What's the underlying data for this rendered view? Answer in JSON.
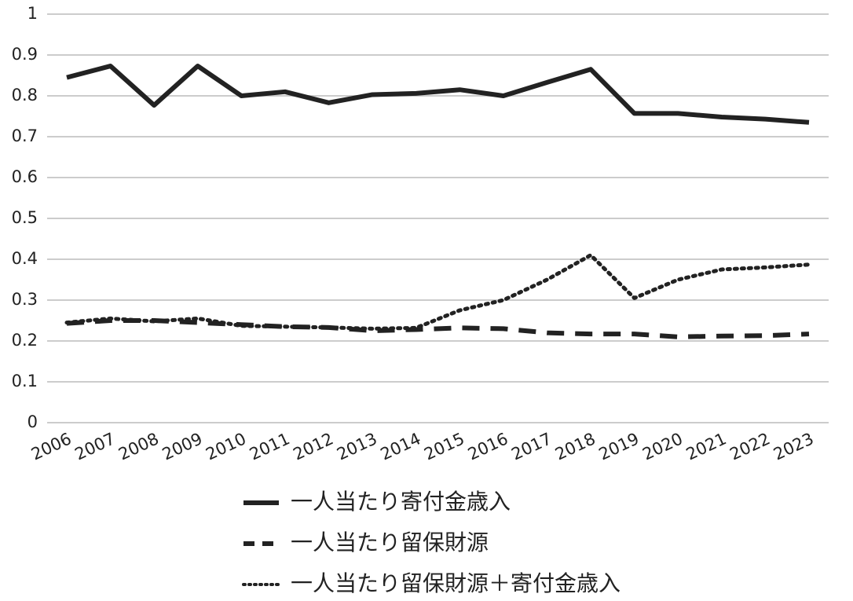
{
  "chart_data": {
    "type": "line",
    "categories": [
      "2006",
      "2007",
      "2008",
      "2009",
      "2010",
      "2011",
      "2012",
      "2013",
      "2014",
      "2015",
      "2016",
      "2017",
      "2018",
      "2019",
      "2020",
      "2021",
      "2022",
      "2023"
    ],
    "series": [
      {
        "name": "一人当たり寄付金歳入",
        "color": "#222222",
        "style": "solid",
        "values": [
          0.845,
          0.873,
          0.777,
          0.873,
          0.8,
          0.81,
          0.783,
          0.803,
          0.806,
          0.815,
          0.8,
          0.833,
          0.865,
          0.757,
          0.757,
          0.748,
          0.743,
          0.735
        ]
      },
      {
        "name": "一人当たり留保財源",
        "color": "#222222",
        "style": "dashed",
        "values": [
          0.243,
          0.25,
          0.25,
          0.245,
          0.24,
          0.235,
          0.233,
          0.225,
          0.228,
          0.232,
          0.23,
          0.22,
          0.217,
          0.217,
          0.21,
          0.212,
          0.213,
          0.217
        ]
      },
      {
        "name": "一人当たり留保財源＋寄付金歳入",
        "color": "#222222",
        "style": "dotted",
        "values": [
          0.245,
          0.255,
          0.248,
          0.255,
          0.237,
          0.235,
          0.233,
          0.23,
          0.232,
          0.275,
          0.3,
          0.35,
          0.41,
          0.305,
          0.35,
          0.375,
          0.38,
          0.387
        ]
      }
    ],
    "ylim": [
      0,
      1
    ],
    "yticks": [
      0,
      0.1,
      0.2,
      0.3,
      0.4,
      0.5,
      0.6,
      0.7,
      0.8,
      0.9,
      1
    ],
    "grid": true,
    "legend": "bottom"
  }
}
